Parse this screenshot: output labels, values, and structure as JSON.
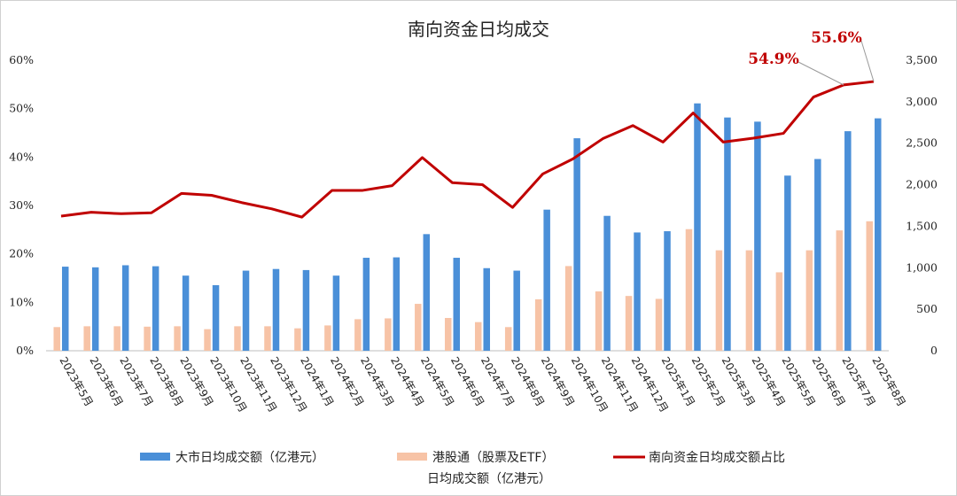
{
  "chart_data": {
    "type": "bar+line",
    "title": "南向资金日均成交",
    "categories": [
      "2023年5月",
      "2023年6月",
      "2023年7月",
      "2023年8月",
      "2023年9月",
      "2023年10月",
      "2023年11月",
      "2023年12月",
      "2024年1月",
      "2024年2月",
      "2024年3月",
      "2024年4月",
      "2024年5月",
      "2024年6月",
      "2024年7月",
      "2024年8月",
      "2024年9月",
      "2024年10月",
      "2024年11月",
      "2024年12月",
      "2025年1月",
      "2025年2月",
      "2025年3月",
      "2025年4月",
      "2025年5月",
      "2025年6月",
      "2025年7月",
      "2025年8月"
    ],
    "left_axis": {
      "ylim": [
        0,
        0.6
      ],
      "ticks": [
        "0%",
        "10%",
        "20%",
        "30%",
        "40%",
        "50%",
        "60%"
      ]
    },
    "right_axis": {
      "ylim": [
        0,
        3500
      ],
      "ticks": [
        "0",
        "500",
        "1,000",
        "1,500",
        "2,000",
        "2,500",
        "3,000",
        "3,500"
      ]
    },
    "series": [
      {
        "name": "大市日均成交额（亿港元）",
        "type": "bar",
        "axis": "right",
        "color": "#4a8fd8",
        "values": [
          1013,
          1005,
          1030,
          1018,
          905,
          790,
          965,
          985,
          972,
          905,
          1120,
          1125,
          1405,
          1120,
          995,
          965,
          1700,
          2560,
          1625,
          1425,
          1440,
          2980,
          2810,
          2760,
          2110,
          2310,
          2645,
          2800
        ]
      },
      {
        "name": "港股通（股票及ETF）日均成交额（亿港元）",
        "type": "bar",
        "axis": "right",
        "color": "#f7c3a6",
        "values": [
          285,
          295,
          295,
          290,
          295,
          260,
          295,
          295,
          270,
          305,
          380,
          390,
          565,
          395,
          345,
          285,
          620,
          1020,
          715,
          660,
          625,
          1465,
          1210,
          1210,
          945,
          1210,
          1450,
          1560
        ]
      },
      {
        "name": "南向资金日均成交额占比",
        "type": "line",
        "axis": "left",
        "color": "#c00000",
        "values": [
          0.278,
          0.286,
          0.283,
          0.285,
          0.325,
          0.321,
          0.306,
          0.293,
          0.276,
          0.331,
          0.331,
          0.341,
          0.399,
          0.347,
          0.343,
          0.296,
          0.365,
          0.396,
          0.438,
          0.465,
          0.431,
          0.491,
          0.431,
          0.439,
          0.449,
          0.524,
          0.549,
          0.556
        ]
      }
    ],
    "annotations": [
      {
        "text": "54.9%",
        "index": 26
      },
      {
        "text": "55.6%",
        "index": 27
      }
    ],
    "legend": {
      "position": "bottom",
      "items": [
        {
          "label": "大市日均成交额（亿港元）",
          "color": "#4a8fd8",
          "kind": "bar"
        },
        {
          "label": "港股通（股票及ETF）",
          "label2": "日均成交额（亿港元）",
          "color": "#f7c3a6",
          "kind": "bar"
        },
        {
          "label": "南向资金日均成交额占比",
          "color": "#c00000",
          "kind": "line"
        }
      ]
    },
    "grid": false
  }
}
